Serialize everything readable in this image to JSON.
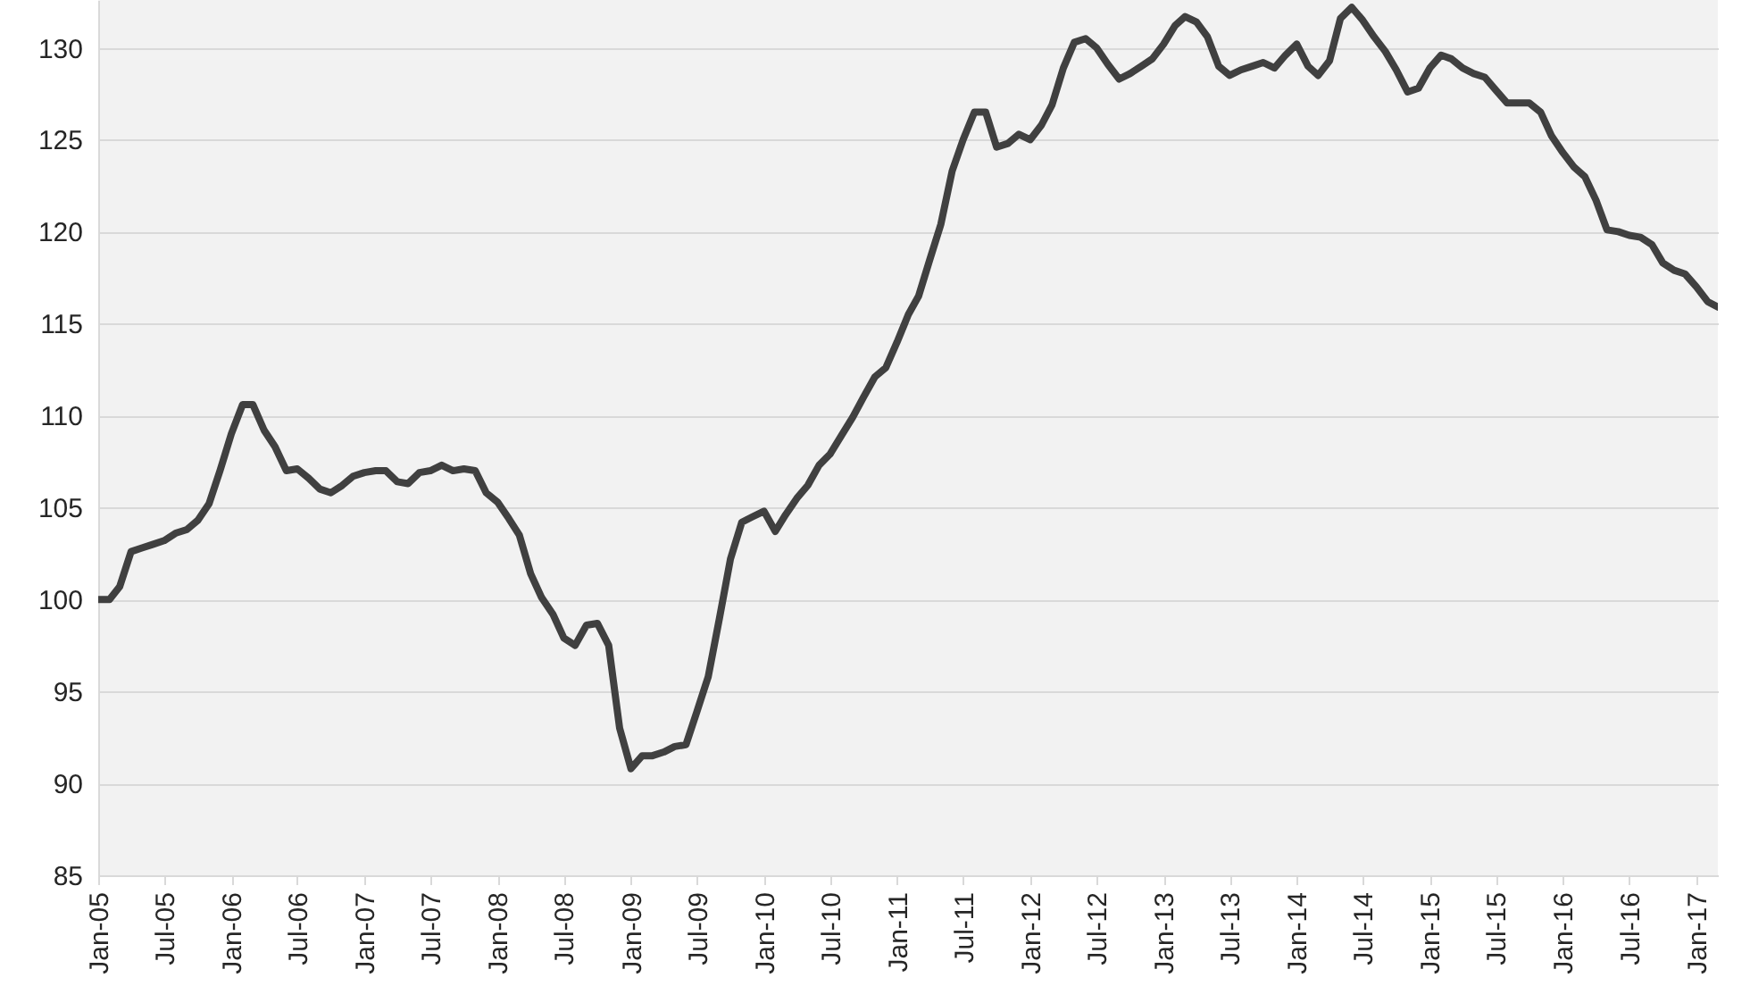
{
  "chart_data": {
    "type": "line",
    "x": [
      "2005-01",
      "2005-02",
      "2005-03",
      "2005-04",
      "2005-05",
      "2005-06",
      "2005-07",
      "2005-08",
      "2005-09",
      "2005-10",
      "2005-11",
      "2005-12",
      "2006-01",
      "2006-02",
      "2006-03",
      "2006-04",
      "2006-05",
      "2006-06",
      "2006-07",
      "2006-08",
      "2006-09",
      "2006-10",
      "2006-11",
      "2006-12",
      "2007-01",
      "2007-02",
      "2007-03",
      "2007-04",
      "2007-05",
      "2007-06",
      "2007-07",
      "2007-08",
      "2007-09",
      "2007-10",
      "2007-11",
      "2007-12",
      "2008-01",
      "2008-02",
      "2008-03",
      "2008-04",
      "2008-05",
      "2008-06",
      "2008-07",
      "2008-08",
      "2008-09",
      "2008-10",
      "2008-11",
      "2008-12",
      "2009-01",
      "2009-02",
      "2009-03",
      "2009-04",
      "2009-05",
      "2009-06",
      "2009-07",
      "2009-08",
      "2009-09",
      "2009-10",
      "2009-11",
      "2009-12",
      "2010-01",
      "2010-02",
      "2010-03",
      "2010-04",
      "2010-05",
      "2010-06",
      "2010-07",
      "2010-08",
      "2010-09",
      "2010-10",
      "2010-11",
      "2010-12",
      "2011-01",
      "2011-02",
      "2011-03",
      "2011-04",
      "2011-05",
      "2011-06",
      "2011-07",
      "2011-08",
      "2011-09",
      "2011-10",
      "2011-11",
      "2011-12",
      "2012-01",
      "2012-02",
      "2012-03",
      "2012-04",
      "2012-05",
      "2012-06",
      "2012-07",
      "2012-08",
      "2012-09",
      "2012-10",
      "2012-11",
      "2012-12",
      "2013-01",
      "2013-02",
      "2013-03",
      "2013-04",
      "2013-05",
      "2013-06",
      "2013-07",
      "2013-08",
      "2013-09",
      "2013-10",
      "2013-11",
      "2013-12",
      "2014-01",
      "2014-02",
      "2014-03",
      "2014-04",
      "2014-05",
      "2014-06",
      "2014-07",
      "2014-08",
      "2014-09",
      "2014-10",
      "2014-11",
      "2014-12",
      "2015-01",
      "2015-02",
      "2015-03",
      "2015-04",
      "2015-05",
      "2015-06",
      "2015-07",
      "2015-08",
      "2015-09",
      "2015-10",
      "2015-11",
      "2015-12",
      "2016-01",
      "2016-02",
      "2016-03",
      "2016-04",
      "2016-05",
      "2016-06",
      "2016-07",
      "2016-08",
      "2016-09",
      "2016-10",
      "2016-11",
      "2016-12",
      "2017-01",
      "2017-02",
      "2017-03"
    ],
    "series": [
      {
        "color": "#404040",
        "values": [
          100.0,
          100.0,
          100.7,
          102.6,
          102.8,
          103.0,
          103.2,
          103.6,
          103.8,
          104.3,
          105.2,
          107.0,
          109.0,
          110.6,
          110.6,
          109.2,
          108.3,
          107.0,
          107.1,
          106.6,
          106.0,
          105.8,
          106.2,
          106.7,
          106.9,
          107.0,
          107.0,
          106.4,
          106.3,
          106.9,
          107.0,
          107.3,
          107.0,
          107.1,
          107.0,
          105.8,
          105.3,
          104.4,
          103.5,
          101.4,
          100.1,
          99.2,
          97.9,
          97.5,
          98.6,
          98.7,
          97.5,
          93.0,
          90.8,
          91.5,
          91.5,
          91.7,
          92.0,
          92.1,
          93.9,
          95.8,
          99.0,
          102.2,
          104.2,
          104.5,
          104.8,
          103.7,
          104.6,
          105.5,
          106.2,
          107.3,
          107.9,
          108.9,
          109.9,
          111.0,
          112.1,
          112.6,
          114.0,
          115.5,
          116.5,
          118.5,
          120.4,
          123.3,
          125.0,
          126.5,
          126.5,
          124.6,
          124.8,
          125.3,
          125.0,
          125.8,
          126.9,
          128.9,
          130.3,
          130.5,
          130.0,
          129.1,
          128.3,
          128.6,
          129.0,
          129.4,
          130.2,
          131.2,
          131.7,
          131.4,
          130.6,
          129.0,
          128.5,
          128.8,
          129.0,
          129.2,
          128.9,
          129.6,
          130.2,
          129.0,
          128.5,
          129.3,
          131.6,
          132.2,
          131.5,
          130.6,
          129.8,
          128.8,
          127.6,
          127.8,
          128.9,
          129.6,
          129.4,
          128.9,
          128.6,
          128.4,
          127.7,
          127.0,
          127.0,
          127.0,
          126.5,
          125.2,
          124.3,
          123.5,
          123.0,
          121.7,
          120.1,
          120.0,
          119.8,
          119.7,
          119.3,
          118.3,
          117.9,
          117.7,
          117.0,
          116.2,
          115.9
        ]
      }
    ],
    "xlim": [
      "2005-01",
      "2017-03"
    ],
    "xticks": [
      {
        "value": "2005-01",
        "label": "Jan-05"
      },
      {
        "value": "2005-07",
        "label": "Jul-05"
      },
      {
        "value": "2006-01",
        "label": "Jan-06"
      },
      {
        "value": "2006-07",
        "label": "Jul-06"
      },
      {
        "value": "2007-01",
        "label": "Jan-07"
      },
      {
        "value": "2007-07",
        "label": "Jul-07"
      },
      {
        "value": "2008-01",
        "label": "Jan-08"
      },
      {
        "value": "2008-07",
        "label": "Jul-08"
      },
      {
        "value": "2009-01",
        "label": "Jan-09"
      },
      {
        "value": "2009-07",
        "label": "Jul-09"
      },
      {
        "value": "2010-01",
        "label": "Jan-10"
      },
      {
        "value": "2010-07",
        "label": "Jul-10"
      },
      {
        "value": "2011-01",
        "label": "Jan-11"
      },
      {
        "value": "2011-07",
        "label": "Jul-11"
      },
      {
        "value": "2012-01",
        "label": "Jan-12"
      },
      {
        "value": "2012-07",
        "label": "Jul-12"
      },
      {
        "value": "2013-01",
        "label": "Jan-13"
      },
      {
        "value": "2013-07",
        "label": "Jul-13"
      },
      {
        "value": "2014-01",
        "label": "Jan-14"
      },
      {
        "value": "2014-07",
        "label": "Jul-14"
      },
      {
        "value": "2015-01",
        "label": "Jan-15"
      },
      {
        "value": "2015-07",
        "label": "Jul-15"
      },
      {
        "value": "2016-01",
        "label": "Jan-16"
      },
      {
        "value": "2016-07",
        "label": "Jul-16"
      },
      {
        "value": "2017-01",
        "label": "Jan-17"
      }
    ],
    "ylim": [
      85,
      132.6
    ],
    "yticks": [
      85,
      90,
      95,
      100,
      105,
      110,
      115,
      120,
      125,
      130
    ],
    "grid": "y"
  }
}
